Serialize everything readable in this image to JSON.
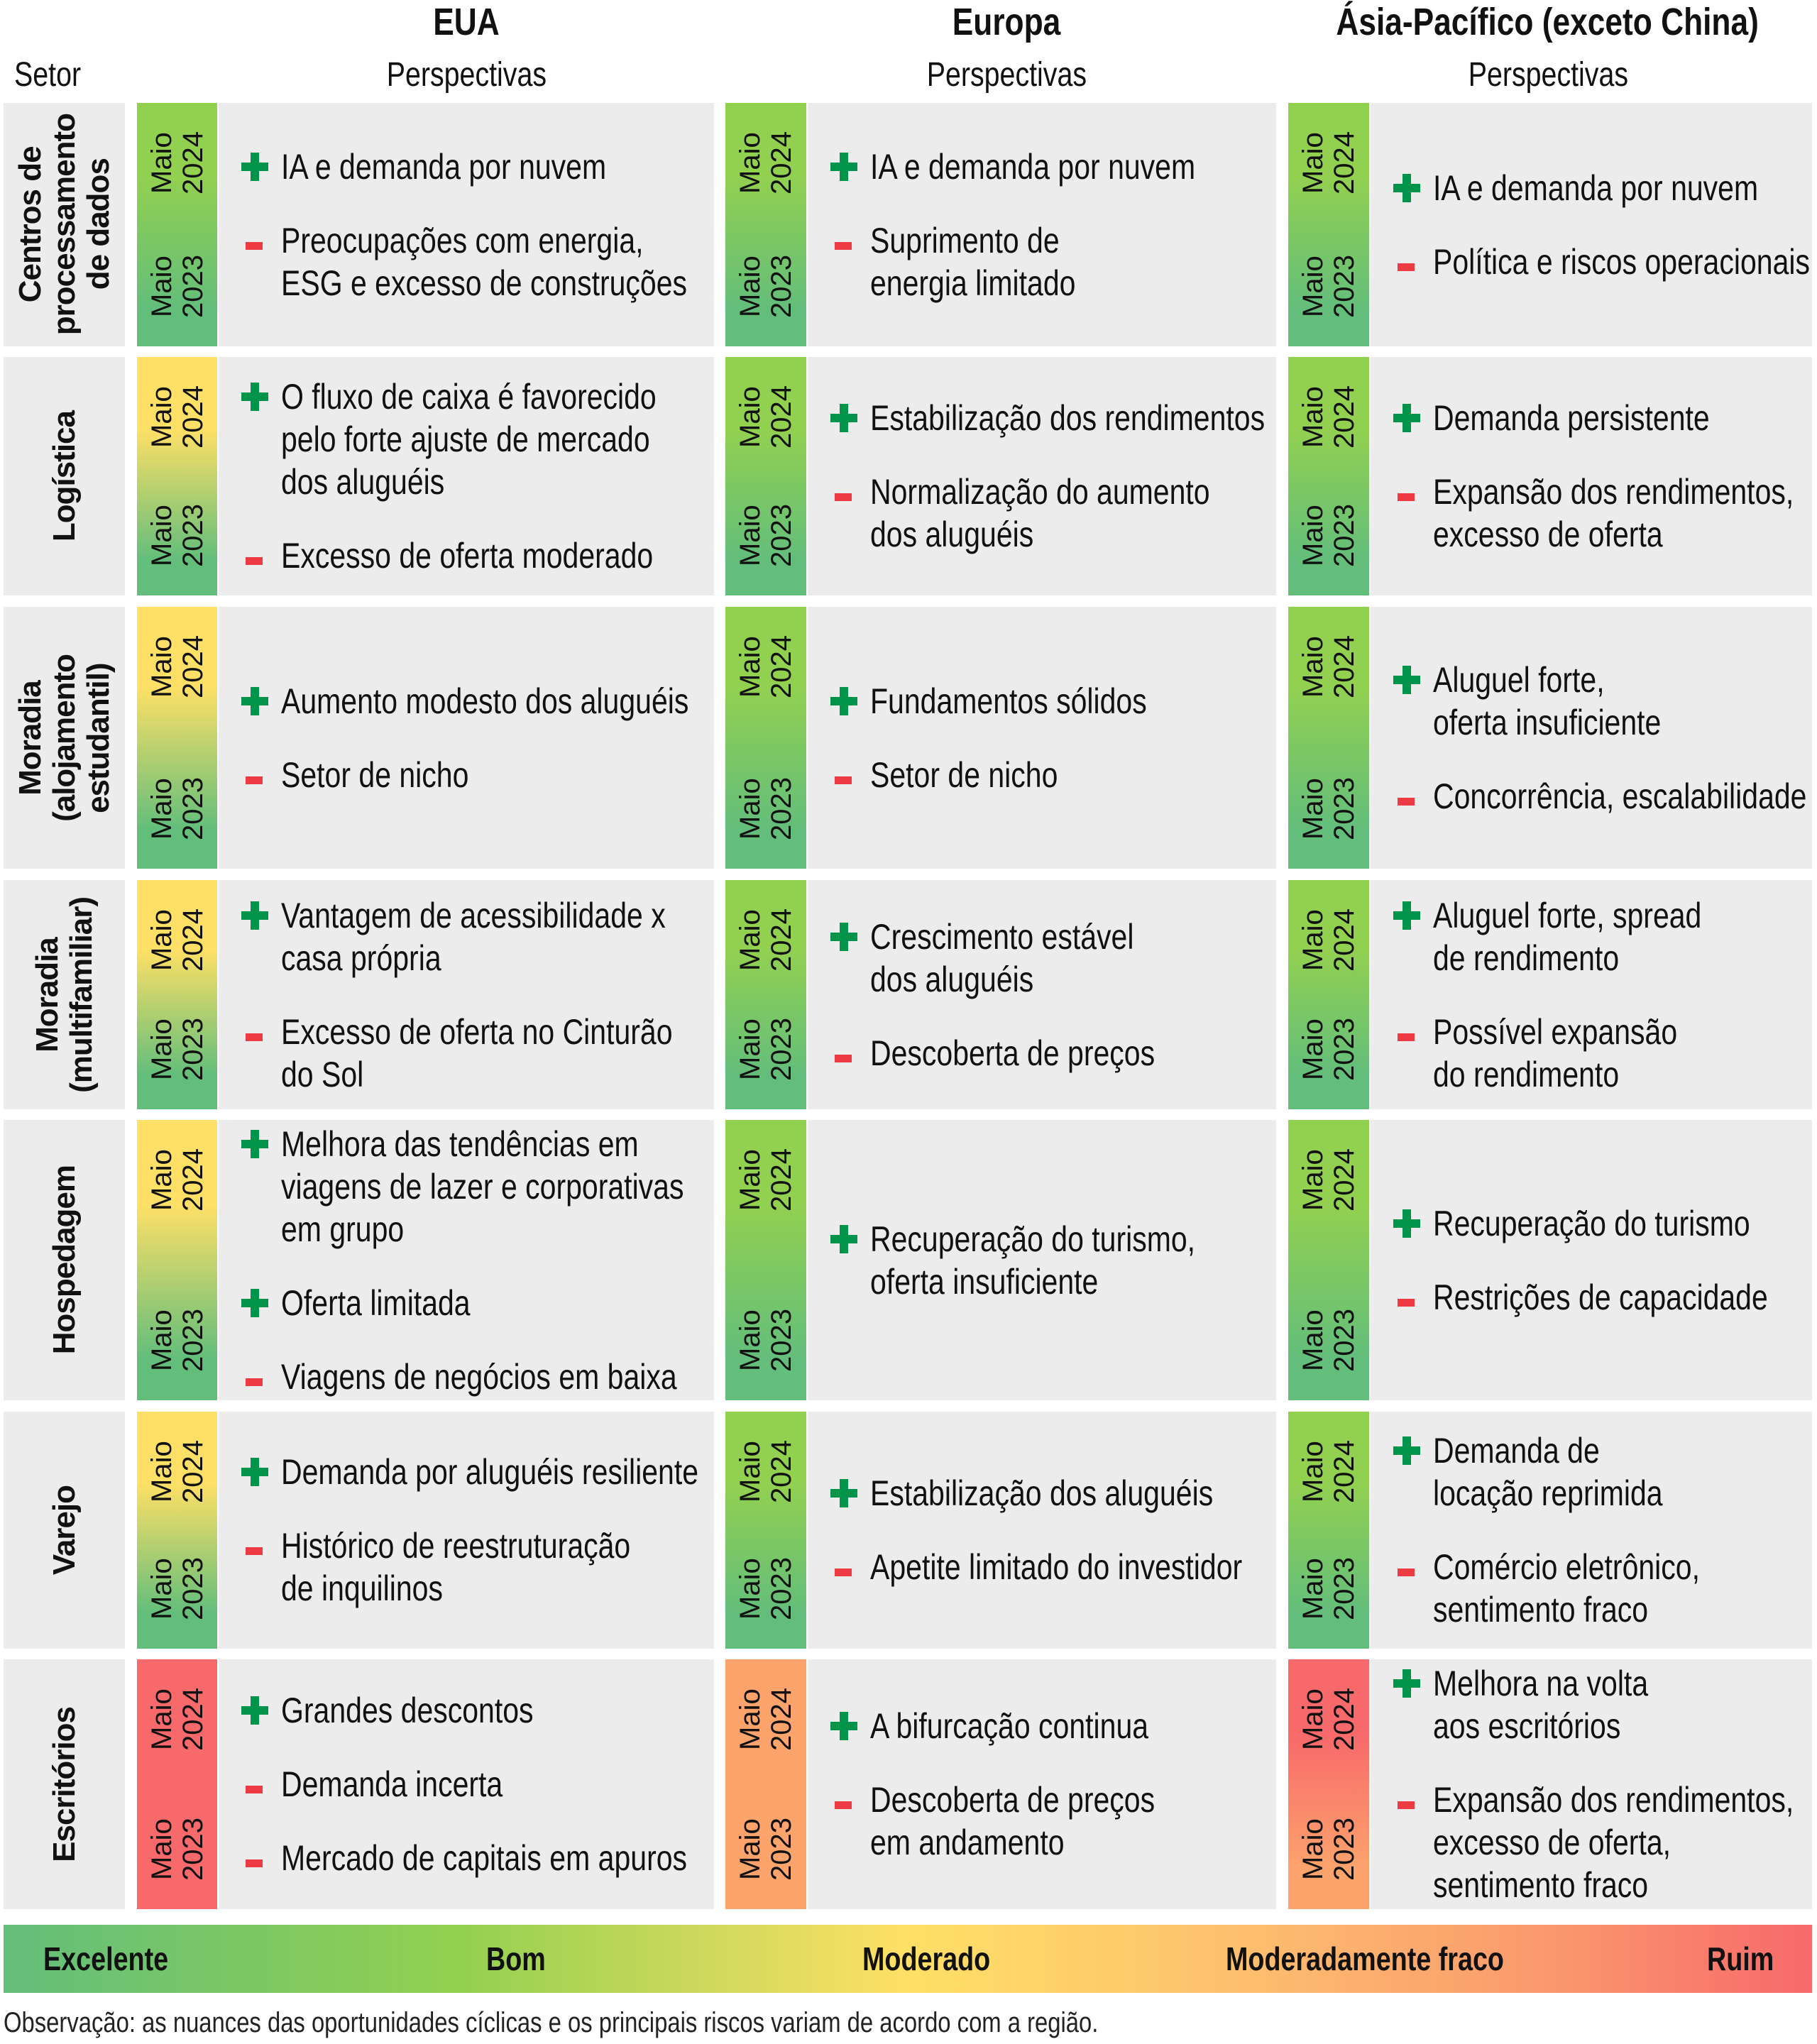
{
  "header": {
    "sector_label": "Setor",
    "regions": [
      {
        "name": "EUA",
        "sub": "Perspectivas"
      },
      {
        "name": "Europa",
        "sub": "Perspectivas"
      },
      {
        "name": "Ásia-Pacífico (exceto China)",
        "sub": "Perspectivas"
      }
    ]
  },
  "bar_labels": {
    "top": "Maio\n2024",
    "bottom": "Maio\n2023"
  },
  "rating_colors": {
    "Excelente": "#63be7b",
    "Bom": "#92d050",
    "Moderado": "#ffe066",
    "Moderadamente fraco": "#fca46c",
    "Ruim": "#f8696b"
  },
  "sign_colors": {
    "plus": "#00944a",
    "minus": "#ee3a43"
  },
  "rows": [
    {
      "sector": "Centros de\nprocessamento\nde dados",
      "cells": [
        {
          "may2024": "Bom",
          "may2023": "Excelente",
          "items": [
            {
              "sign": "plus",
              "text": "IA e demanda por nuvem"
            },
            {
              "sign": "minus",
              "text": "Preocupações com energia,\nESG e excesso de construções"
            }
          ]
        },
        {
          "may2024": "Bom",
          "may2023": "Excelente",
          "items": [
            {
              "sign": "plus",
              "text": "IA e demanda por nuvem"
            },
            {
              "sign": "minus",
              "text": "Suprimento de\nenergia limitado"
            }
          ]
        },
        {
          "may2024": "Bom",
          "may2023": "Excelente",
          "items": [
            {
              "sign": "plus",
              "text": "IA e demanda por nuvem"
            },
            {
              "sign": "minus",
              "text": "Política e riscos operacionais"
            }
          ]
        }
      ]
    },
    {
      "sector": "Logística",
      "cells": [
        {
          "may2024": "Moderado",
          "may2023": "Excelente",
          "items": [
            {
              "sign": "plus",
              "text": "O fluxo de caixa é favorecido\npelo forte ajuste de mercado\ndos aluguéis"
            },
            {
              "sign": "minus",
              "text": "Excesso de oferta moderado"
            }
          ]
        },
        {
          "may2024": "Bom",
          "may2023": "Excelente",
          "items": [
            {
              "sign": "plus",
              "text": "Estabilização dos rendimentos"
            },
            {
              "sign": "minus",
              "text": "Normalização do aumento\ndos aluguéis"
            }
          ]
        },
        {
          "may2024": "Bom",
          "may2023": "Excelente",
          "items": [
            {
              "sign": "plus",
              "text": "Demanda persistente"
            },
            {
              "sign": "minus",
              "text": "Expansão dos rendimentos,\nexcesso de oferta"
            }
          ]
        }
      ]
    },
    {
      "sector": "Moradia\n(alojamento\nestudantil)",
      "cells": [
        {
          "may2024": "Moderado",
          "may2023": "Excelente",
          "items": [
            {
              "sign": "plus",
              "text": "Aumento modesto dos aluguéis"
            },
            {
              "sign": "minus",
              "text": "Setor de nicho"
            }
          ]
        },
        {
          "may2024": "Bom",
          "may2023": "Excelente",
          "items": [
            {
              "sign": "plus",
              "text": "Fundamentos sólidos"
            },
            {
              "sign": "minus",
              "text": "Setor de nicho"
            }
          ]
        },
        {
          "may2024": "Bom",
          "may2023": "Excelente",
          "items": [
            {
              "sign": "plus",
              "text": "Aluguel forte,\noferta insuficiente"
            },
            {
              "sign": "minus",
              "text": "Concorrência, escalabilidade"
            }
          ]
        }
      ]
    },
    {
      "sector": "Moradia\n(multifamiliar)",
      "cells": [
        {
          "may2024": "Moderado",
          "may2023": "Excelente",
          "items": [
            {
              "sign": "plus",
              "text": "Vantagem de acessibilidade x\ncasa própria"
            },
            {
              "sign": "minus",
              "text": "Excesso de oferta no Cinturão\ndo Sol"
            }
          ]
        },
        {
          "may2024": "Bom",
          "may2023": "Excelente",
          "items": [
            {
              "sign": "plus",
              "text": "Crescimento estável\ndos aluguéis"
            },
            {
              "sign": "minus",
              "text": "Descoberta de preços"
            }
          ]
        },
        {
          "may2024": "Bom",
          "may2023": "Excelente",
          "items": [
            {
              "sign": "plus",
              "text": "Aluguel forte, spread\nde rendimento"
            },
            {
              "sign": "minus",
              "text": "Possível expansão\ndo rendimento"
            }
          ]
        }
      ]
    },
    {
      "sector": "Hospedagem",
      "cells": [
        {
          "may2024": "Moderado",
          "may2023": "Excelente",
          "items": [
            {
              "sign": "plus",
              "text": "Melhora das tendências em\nviagens de lazer e corporativas\nem grupo"
            },
            {
              "sign": "plus",
              "text": "Oferta limitada"
            },
            {
              "sign": "minus",
              "text": "Viagens de negócios em baixa"
            }
          ]
        },
        {
          "may2024": "Bom",
          "may2023": "Excelente",
          "items": [
            {
              "sign": "plus",
              "text": "Recuperação do turismo,\noferta insuficiente"
            }
          ]
        },
        {
          "may2024": "Bom",
          "may2023": "Excelente",
          "items": [
            {
              "sign": "plus",
              "text": "Recuperação do turismo"
            },
            {
              "sign": "minus",
              "text": "Restrições de capacidade"
            }
          ]
        }
      ]
    },
    {
      "sector": "Varejo",
      "cells": [
        {
          "may2024": "Moderado",
          "may2023": "Excelente",
          "items": [
            {
              "sign": "plus",
              "text": "Demanda por aluguéis resiliente"
            },
            {
              "sign": "minus",
              "text": "Histórico de reestruturação\nde inquilinos"
            }
          ]
        },
        {
          "may2024": "Bom",
          "may2023": "Excelente",
          "items": [
            {
              "sign": "plus",
              "text": "Estabilização dos aluguéis"
            },
            {
              "sign": "minus",
              "text": "Apetite limitado do investidor"
            }
          ]
        },
        {
          "may2024": "Bom",
          "may2023": "Excelente",
          "items": [
            {
              "sign": "plus",
              "text": "Demanda de\nlocação reprimida"
            },
            {
              "sign": "minus",
              "text": "Comércio eletrônico,\nsentimento fraco"
            }
          ]
        }
      ]
    },
    {
      "sector": "Escritórios",
      "cells": [
        {
          "may2024": "Ruim",
          "may2023": "Ruim",
          "items": [
            {
              "sign": "plus",
              "text": "Grandes descontos"
            },
            {
              "sign": "minus",
              "text": "Demanda incerta"
            },
            {
              "sign": "minus",
              "text": "Mercado de capitais em apuros"
            }
          ]
        },
        {
          "may2024": "Moderadamente fraco",
          "may2023": "Moderadamente fraco",
          "items": [
            {
              "sign": "plus",
              "text": "A bifurcação continua"
            },
            {
              "sign": "minus",
              "text": "Descoberta de preços\nem andamento"
            }
          ]
        },
        {
          "may2024": "Ruim",
          "may2023": "Moderadamente fraco",
          "items": [
            {
              "sign": "plus",
              "text": "Melhora na volta\naos escritórios"
            },
            {
              "sign": "minus",
              "text": "Expansão dos rendimentos,\nexcesso de oferta,\nsentimento fraco"
            }
          ]
        }
      ]
    }
  ],
  "legend": {
    "labels": [
      "Excelente",
      "Bom",
      "Moderado",
      "Moderadamente fraco",
      "Ruim"
    ]
  },
  "note": "Observação: as nuances das oportunidades cíclicas e os principais riscos variam de acordo com a região."
}
